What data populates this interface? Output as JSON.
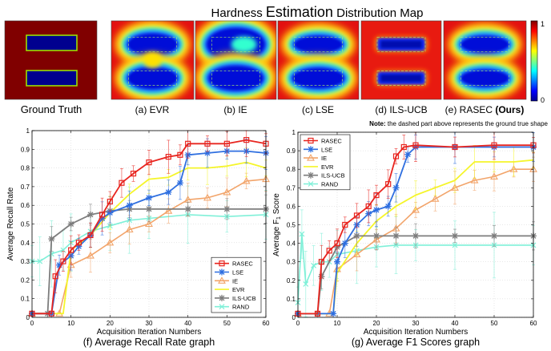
{
  "title_prefix": "Hardness ",
  "title_emph": "Estimation",
  "title_suffix": " Distribution Map",
  "maps": [
    {
      "label": "Ground Truth",
      "kind": "gt"
    },
    {
      "label": "(a) EVR",
      "kind": "evr"
    },
    {
      "label": "(b) IE",
      "kind": "ie"
    },
    {
      "label": "(c) LSE",
      "kind": "lse"
    },
    {
      "label": "(d) ILS-UCB",
      "kind": "ils"
    },
    {
      "label": "(e) RASEC ",
      "label_bold": "(Ours)",
      "kind": "rasec"
    }
  ],
  "colorbar": {
    "max_label": "1",
    "min_label": "0"
  },
  "note_bold": "Note:",
  "note_text": " the dashed part above represents the ground true shape",
  "colors": {
    "RASEC": "#e8251f",
    "LSE": "#2f6fe0",
    "IE": "#f2a46a",
    "EVR": "#f5f52a",
    "ILS-UCB": "#7d7d7d",
    "RAND": "#7ff0d8"
  },
  "chart_data": [
    {
      "type": "line",
      "ylabel": "Average Recall Rate",
      "xlabel": "Acquisition Iteration Numbers",
      "caption": "(f) Average Recall Rate graph",
      "xlim": [
        0,
        60
      ],
      "ylim": [
        0,
        1
      ],
      "xticks": [
        "0",
        "10",
        "20",
        "30",
        "40",
        "50",
        "60"
      ],
      "yticks": [
        "0",
        "0.1",
        "0.2",
        "0.3",
        "0.4",
        "0.5",
        "0.6",
        "0.7",
        "0.8",
        "0.9",
        "1"
      ],
      "legend_position": "bottom-right",
      "series": [
        {
          "name": "RASEC",
          "x": [
            0,
            5,
            6,
            8,
            10,
            12,
            15,
            18,
            20,
            23,
            26,
            30,
            35,
            38,
            40,
            45,
            50,
            55,
            60
          ],
          "y": [
            0.02,
            0.02,
            0.22,
            0.3,
            0.36,
            0.4,
            0.44,
            0.55,
            0.62,
            0.72,
            0.77,
            0.83,
            0.86,
            0.87,
            0.93,
            0.93,
            0.93,
            0.95,
            0.93
          ]
        },
        {
          "name": "LSE",
          "x": [
            0,
            5,
            7,
            10,
            12,
            15,
            18,
            20,
            25,
            30,
            35,
            38,
            40,
            45,
            50,
            55,
            60
          ],
          "y": [
            0.02,
            0.02,
            0.28,
            0.33,
            0.38,
            0.44,
            0.53,
            0.56,
            0.6,
            0.64,
            0.67,
            0.72,
            0.87,
            0.88,
            0.89,
            0.89,
            0.88
          ]
        },
        {
          "name": "IE",
          "x": [
            0,
            7,
            10,
            15,
            20,
            25,
            30,
            35,
            40,
            45,
            50,
            55,
            60
          ],
          "y": [
            0.02,
            0.02,
            0.28,
            0.33,
            0.4,
            0.47,
            0.5,
            0.57,
            0.63,
            0.64,
            0.67,
            0.73,
            0.74
          ]
        },
        {
          "name": "EVR",
          "x": [
            0,
            8,
            10,
            15,
            20,
            25,
            30,
            35,
            40,
            45,
            50,
            55,
            60
          ],
          "y": [
            0.02,
            0.02,
            0.36,
            0.44,
            0.56,
            0.66,
            0.74,
            0.75,
            0.8,
            0.8,
            0.81,
            0.83,
            0.8
          ]
        },
        {
          "name": "ILS-UCB",
          "x": [
            0,
            4,
            5,
            10,
            15,
            20,
            25,
            30,
            40,
            50,
            60
          ],
          "y": [
            0.02,
            0.02,
            0.42,
            0.5,
            0.55,
            0.57,
            0.58,
            0.58,
            0.58,
            0.58,
            0.58
          ]
        },
        {
          "name": "RAND",
          "x": [
            0,
            2,
            5,
            8,
            10,
            15,
            20,
            25,
            30,
            40,
            50,
            60
          ],
          "y": [
            0.3,
            0.3,
            0.34,
            0.36,
            0.4,
            0.46,
            0.49,
            0.52,
            0.53,
            0.55,
            0.54,
            0.55
          ]
        }
      ]
    },
    {
      "type": "line",
      "ylabel_prefix": "Average F",
      "ylabel_sub": "1",
      "ylabel_suffix": " Score",
      "xlabel": "Acquisition Iteration Numbers",
      "caption": "(g) Average F1 Scores graph",
      "xlim": [
        0,
        60
      ],
      "ylim": [
        0,
        1
      ],
      "xticks": [
        "0",
        "10",
        "20",
        "30",
        "40",
        "50",
        "60"
      ],
      "yticks": [
        "0",
        "0.1",
        "0.2",
        "0.3",
        "0.4",
        "0.5",
        "0.6",
        "0.7",
        "0.8",
        "0.9",
        "1"
      ],
      "legend_position": "top-left",
      "series": [
        {
          "name": "RASEC",
          "x": [
            0,
            5,
            6,
            8,
            10,
            12,
            15,
            18,
            20,
            23,
            25,
            27,
            30,
            40,
            50,
            60
          ],
          "y": [
            0.02,
            0.02,
            0.3,
            0.36,
            0.4,
            0.5,
            0.55,
            0.6,
            0.66,
            0.72,
            0.87,
            0.92,
            0.93,
            0.92,
            0.93,
            0.93
          ]
        },
        {
          "name": "LSE",
          "x": [
            0,
            9,
            10,
            12,
            15,
            18,
            20,
            23,
            25,
            28,
            30,
            40,
            50,
            60
          ],
          "y": [
            0.02,
            0.02,
            0.3,
            0.4,
            0.5,
            0.56,
            0.58,
            0.6,
            0.7,
            0.88,
            0.92,
            0.92,
            0.92,
            0.92
          ]
        },
        {
          "name": "IE",
          "x": [
            0,
            8,
            10,
            15,
            20,
            25,
            30,
            35,
            40,
            45,
            50,
            55,
            60
          ],
          "y": [
            0.02,
            0.02,
            0.26,
            0.34,
            0.42,
            0.48,
            0.58,
            0.64,
            0.7,
            0.74,
            0.76,
            0.8,
            0.8
          ]
        },
        {
          "name": "EVR",
          "x": [
            0,
            9,
            10,
            15,
            20,
            25,
            30,
            35,
            40,
            45,
            50,
            55,
            60
          ],
          "y": [
            0.02,
            0.02,
            0.24,
            0.4,
            0.52,
            0.6,
            0.66,
            0.7,
            0.74,
            0.84,
            0.84,
            0.84,
            0.85
          ]
        },
        {
          "name": "ILS-UCB",
          "x": [
            0,
            5,
            6,
            10,
            15,
            20,
            25,
            30,
            40,
            50,
            60
          ],
          "y": [
            0.02,
            0.02,
            0.22,
            0.38,
            0.44,
            0.44,
            0.44,
            0.44,
            0.44,
            0.44,
            0.44
          ]
        },
        {
          "name": "RAND",
          "x": [
            0,
            1,
            2,
            4,
            6,
            8,
            10,
            15,
            20,
            25,
            30,
            40,
            50,
            60
          ],
          "y": [
            0.08,
            0.45,
            0.18,
            0.28,
            0.3,
            0.3,
            0.34,
            0.36,
            0.38,
            0.39,
            0.39,
            0.39,
            0.39,
            0.39
          ]
        }
      ]
    }
  ]
}
